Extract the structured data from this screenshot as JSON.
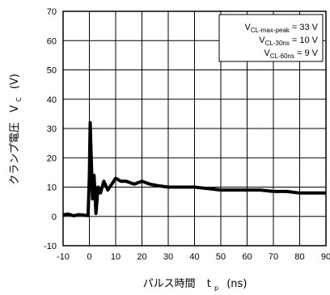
{
  "chart_data": {
    "type": "line",
    "xlabel": {
      "text": "パルス時間",
      "var": "t",
      "sub": "p",
      "unit": "(ns)"
    },
    "ylabel": {
      "text": "クランプ電圧",
      "var": "V",
      "sub": "C",
      "unit": "(V)"
    },
    "xlim": [
      -10,
      90
    ],
    "ylim": [
      -10,
      70
    ],
    "xticks": [
      "-10",
      "0",
      "10",
      "20",
      "30",
      "40",
      "50",
      "60",
      "70",
      "80",
      "90"
    ],
    "yticks": [
      "-10",
      "0",
      "10",
      "20",
      "30",
      "40",
      "50",
      "60",
      "70"
    ],
    "grid": true,
    "legend_position": "top-right",
    "annotations": [
      {
        "var": "V",
        "sub": "CL-max-peak",
        "value": "= 33 V"
      },
      {
        "var": "V",
        "sub": "CL-30ns",
        "value": "= 10 V"
      },
      {
        "var": "V",
        "sub": "CL-60ns",
        "value": "= 9 V"
      }
    ],
    "series": [
      {
        "x": [
          -10,
          -8,
          -6,
          -4,
          -2,
          -0.5,
          0,
          0.3,
          0.7,
          1.2,
          1.8,
          2.5,
          3.3,
          4.2,
          5.5,
          7,
          8.5,
          10,
          12,
          14,
          17,
          20,
          23,
          26,
          30,
          35,
          40,
          45,
          50,
          55,
          60,
          65,
          70,
          75,
          80,
          85,
          90
        ],
        "y": [
          0.5,
          0.8,
          0.2,
          0.6,
          0.4,
          0.3,
          14,
          32,
          20,
          6,
          14,
          1,
          10,
          8,
          12,
          9,
          11,
          13,
          12,
          12,
          11,
          12,
          11,
          10.5,
          10,
          10,
          10,
          9.5,
          9,
          9,
          9,
          9,
          8.5,
          8.5,
          8,
          8,
          8
        ]
      }
    ]
  }
}
